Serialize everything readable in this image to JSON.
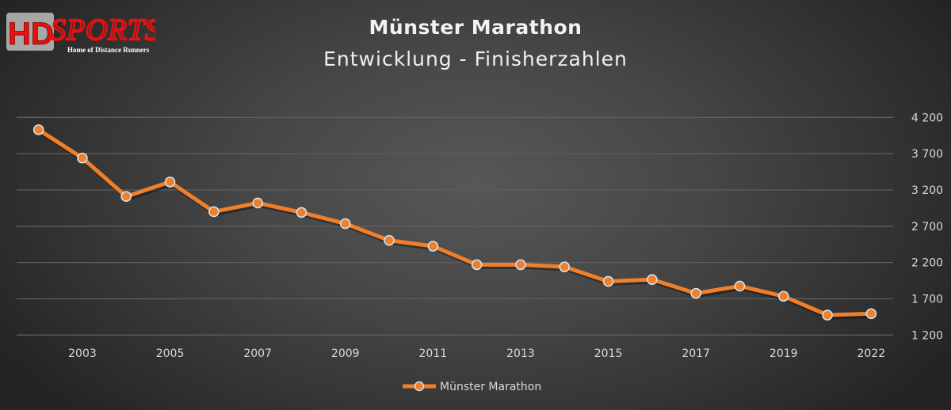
{
  "logo": {
    "text_main": "HD",
    "text_script": "SPORTS",
    "tagline": "Home of Distance Runners"
  },
  "chart_data": {
    "type": "line",
    "title": "Münster Marathon",
    "subtitle": "Entwicklung - Finisherzahlen",
    "categories": [
      "2002",
      "2003",
      "2004",
      "2005",
      "2006",
      "2007",
      "2008",
      "2009",
      "2010",
      "2011",
      "2012",
      "2013",
      "2014",
      "2015",
      "2016",
      "2017",
      "2018",
      "2019",
      "2021",
      "2022"
    ],
    "x_tick_labels": [
      "2003",
      "2005",
      "2007",
      "2009",
      "2011",
      "2013",
      "2015",
      "2017",
      "2019",
      "2022"
    ],
    "series": [
      {
        "name": "Münster Marathon",
        "values": [
          4030,
          3640,
          3110,
          3310,
          2900,
          3020,
          2890,
          2735,
          2505,
          2425,
          2170,
          2170,
          2140,
          1940,
          1965,
          1775,
          1875,
          1735,
          1475,
          1495
        ]
      }
    ],
    "ylim": [
      1200,
      4200
    ],
    "y_ticks": [
      1200,
      1700,
      2200,
      2700,
      3200,
      3700,
      4200
    ],
    "y_tick_labels": [
      "1 200",
      "1 700",
      "2 200",
      "2 700",
      "3 200",
      "3 700",
      "4 200"
    ],
    "y_axis_side": "right",
    "grid": "horizontal",
    "legend": "bottom",
    "colors": {
      "line": "#f07f2a",
      "marker_edge": "#cfe3f2",
      "grid": "#5e5e5e",
      "logo_red": "#e81010"
    }
  }
}
